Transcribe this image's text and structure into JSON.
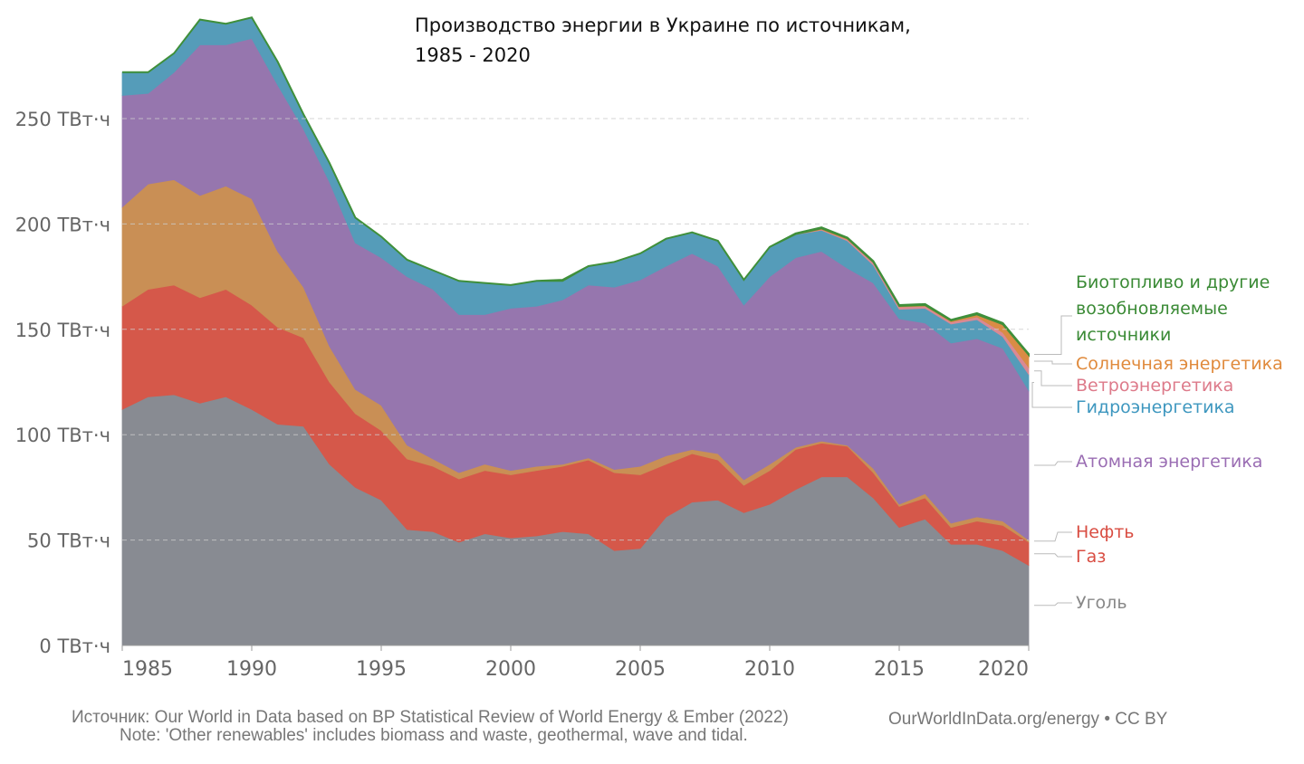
{
  "chart_data": {
    "type": "area",
    "stacked": true,
    "title": "Производство энергии в Украине по источникам,",
    "title_line2": "1985 - 2020",
    "x": [
      1985,
      1986,
      1987,
      1988,
      1989,
      1990,
      1991,
      1992,
      1993,
      1994,
      1995,
      1996,
      1997,
      1998,
      1999,
      2000,
      2001,
      2002,
      2003,
      2004,
      2005,
      2006,
      2007,
      2008,
      2009,
      2010,
      2011,
      2012,
      2013,
      2014,
      2015,
      2016,
      2017,
      2018,
      2019,
      2020
    ],
    "xticks": [
      "1985",
      "1990",
      "1995",
      "2000",
      "2005",
      "2010",
      "2015",
      "2020"
    ],
    "yticks": [
      "0 ТВт·ч",
      "50 ТВт·ч",
      "100 ТВт·ч",
      "150 ТВт·ч",
      "200 ТВт·ч",
      "250 ТВт·ч"
    ],
    "ytick_values": [
      0,
      50,
      100,
      150,
      200,
      250
    ],
    "ylim": [
      0,
      300
    ],
    "xlim": [
      1985,
      2020
    ],
    "grid": "horizontal dashed",
    "legend": "right, inline labels",
    "series": [
      {
        "name": "Уголь",
        "color": "#888b92",
        "label_color": "#888888",
        "values": [
          112,
          118,
          119,
          115,
          118,
          112,
          105,
          104,
          86,
          75,
          69,
          55,
          54,
          49,
          53,
          51,
          52,
          54,
          53,
          45,
          46,
          61,
          68,
          69,
          63,
          67,
          74,
          80,
          80,
          70,
          56,
          60,
          48,
          48,
          45,
          38
        ]
      },
      {
        "name": "Газ",
        "color": "#d5584a",
        "label_color": "#d94d42",
        "values": [
          49,
          51,
          52,
          50,
          51,
          49.5,
          46,
          42,
          39,
          35,
          33,
          33.5,
          31,
          30,
          30,
          30,
          31,
          31,
          35,
          37,
          35,
          25,
          23,
          19,
          13,
          16,
          19,
          16,
          14.5,
          12,
          10,
          10,
          8,
          11,
          12,
          11
        ]
      },
      {
        "name": "Нефть",
        "color": "#c98f55",
        "label_color": "#d94d42",
        "values": [
          47,
          50,
          50,
          48.5,
          49,
          50.5,
          36,
          24,
          17,
          11.5,
          12,
          6.5,
          3.5,
          3,
          3,
          2,
          2,
          1,
          1,
          1.5,
          4,
          4,
          2,
          3,
          2.6,
          3,
          1,
          1,
          0.5,
          2,
          1,
          2,
          2,
          2,
          2,
          1
        ]
      },
      {
        "name": "Атомная энергетика",
        "color": "#9676ae",
        "label_color": "#9a6db3",
        "values": [
          53,
          43,
          51,
          71.5,
          67,
          76,
          79,
          75,
          78,
          69.5,
          70,
          80,
          80.5,
          75,
          71,
          77,
          76,
          78,
          82,
          86.5,
          88.5,
          90,
          93,
          89,
          82.9,
          89,
          90,
          90,
          84,
          88,
          88,
          81,
          85.5,
          84.6,
          82,
          71
        ]
      },
      {
        "name": "Гидроэнергетика",
        "color": "#559cb9",
        "label_color": "#3e97bf",
        "values": [
          11,
          10,
          9,
          12,
          10,
          10,
          11,
          7,
          9,
          12,
          10,
          8,
          9,
          16,
          15,
          11,
          12,
          9,
          9,
          12,
          12.5,
          13,
          10,
          12,
          12,
          14,
          11,
          10,
          13,
          8.5,
          4.5,
          7,
          9,
          9,
          5.5,
          7.6
        ]
      },
      {
        "name": "Ветроэнергетика",
        "color": "#d98994",
        "label_color": "#dd7a8a",
        "values": [
          0,
          0,
          0,
          0,
          0,
          0,
          0,
          0,
          0,
          0,
          0,
          0,
          0,
          0,
          0,
          0,
          0,
          0,
          0,
          0,
          0,
          0,
          0,
          0,
          0,
          0.1,
          0.1,
          0.3,
          0.6,
          1.1,
          1.1,
          1.0,
          1.0,
          1.3,
          2.0,
          3.3
        ]
      },
      {
        "name": "Солнечная энергетика",
        "color": "#d98c45",
        "label_color": "#e08a3c",
        "values": [
          0,
          0,
          0,
          0,
          0,
          0,
          0,
          0,
          0,
          0,
          0,
          0,
          0,
          0,
          0,
          0,
          0,
          0,
          0,
          0,
          0,
          0,
          0,
          0,
          0,
          0,
          0.1,
          0.6,
          0.6,
          0.4,
          0.5,
          0.5,
          0.7,
          1.2,
          3.9,
          6.0
        ]
      },
      {
        "name": "Биотопливо и другие возобновляемые источники",
        "name_lines": [
          "Биотопливо и другие",
          "возобновляемые",
          "источники"
        ],
        "color": "#3f8f3a",
        "label_color": "#3a8a35",
        "values": [
          0,
          0,
          0,
          0,
          0,
          0,
          0,
          0,
          0,
          0,
          0,
          0,
          0,
          0,
          0,
          0,
          0,
          0.5,
          0,
          0,
          0,
          0,
          0,
          0,
          0,
          0,
          0.3,
          0.5,
          0.3,
          0.4,
          0.4,
          0.5,
          0.3,
          0.6,
          0.6,
          0.4
        ]
      }
    ]
  },
  "footer": {
    "source": "Источник:  Our World in Data based on BP Statistical Review of World Energy & Ember (2022)",
    "note": "Note: 'Other renewables' includes biomass and waste, geothermal, wave and tidal.",
    "credit": "OurWorldInData.org/energy • CC BY"
  }
}
